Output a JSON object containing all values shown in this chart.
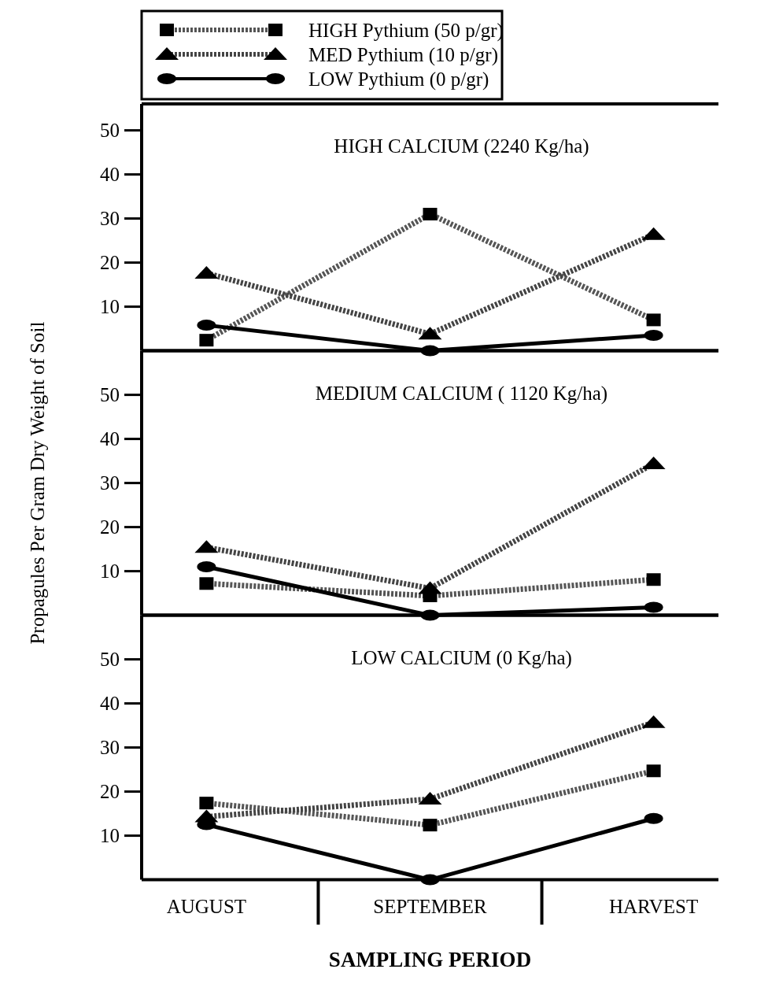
{
  "chart_data": [
    {
      "type": "line",
      "title": "HIGH CALCIUM (2240 Kg/ha)",
      "categories": [
        null,
        null,
        null
      ],
      "ylim": [
        0,
        56
      ],
      "yticks": [
        10,
        20,
        30,
        40,
        50
      ],
      "tick_labels": "y",
      "legend": "top",
      "series": [
        {
          "name": "HIGH Pythium (50 p/gr)",
          "color": "#555555",
          "marker": "square",
          "line_style": "dashed",
          "values": [
            2.4,
            31,
            7
          ]
        },
        {
          "name": "MED Pythium (10 p/gr)",
          "color": "#444444",
          "marker": "triangle",
          "line_style": "dashed",
          "values": [
            17.6,
            3.8,
            26.4
          ]
        },
        {
          "name": "LOW Pythium (0 p/gr)",
          "color": "#000000",
          "marker": "circle",
          "line_style": "solid",
          "values": [
            5.8,
            0,
            3.5
          ]
        }
      ]
    },
    {
      "type": "line",
      "title": "MEDIUM CALCIUM ( 1120 Kg/ha)",
      "ylabel": "Propagules Per Gram Dry Weight of Soil",
      "categories": [
        null,
        null,
        null
      ],
      "ylim": [
        0,
        60
      ],
      "yticks": [
        10,
        20,
        30,
        40,
        50
      ],
      "tick_labels": "y",
      "series": [
        {
          "color": "#555555",
          "marker": "square",
          "line_style": "dashed",
          "values": [
            7.2,
            4.4,
            8.1
          ]
        },
        {
          "color": "#444444",
          "marker": "triangle",
          "line_style": "dashed",
          "values": [
            15.4,
            6.1,
            34.4
          ]
        },
        {
          "color": "#000000",
          "marker": "circle",
          "line_style": "solid",
          "values": [
            11,
            0,
            1.8
          ]
        }
      ]
    },
    {
      "type": "line",
      "title": "LOW CALCIUM (0 Kg/ha)",
      "xlabel": "SAMPLING PERIOD",
      "categories": [
        "AUGUST",
        "SEPTEMBER",
        "HARVEST"
      ],
      "ylim": [
        0,
        60
      ],
      "yticks": [
        10,
        20,
        30,
        40,
        50
      ],
      "series": [
        {
          "color": "#555555",
          "marker": "square",
          "line_style": "dashed",
          "values": [
            17.4,
            12.4,
            24.7
          ]
        },
        {
          "color": "#444444",
          "marker": "triangle",
          "line_style": "dashed",
          "values": [
            14.3,
            18.3,
            35.7
          ]
        },
        {
          "color": "#000000",
          "marker": "circle",
          "line_style": "solid",
          "values": [
            12.5,
            0,
            13.9
          ]
        }
      ]
    }
  ]
}
